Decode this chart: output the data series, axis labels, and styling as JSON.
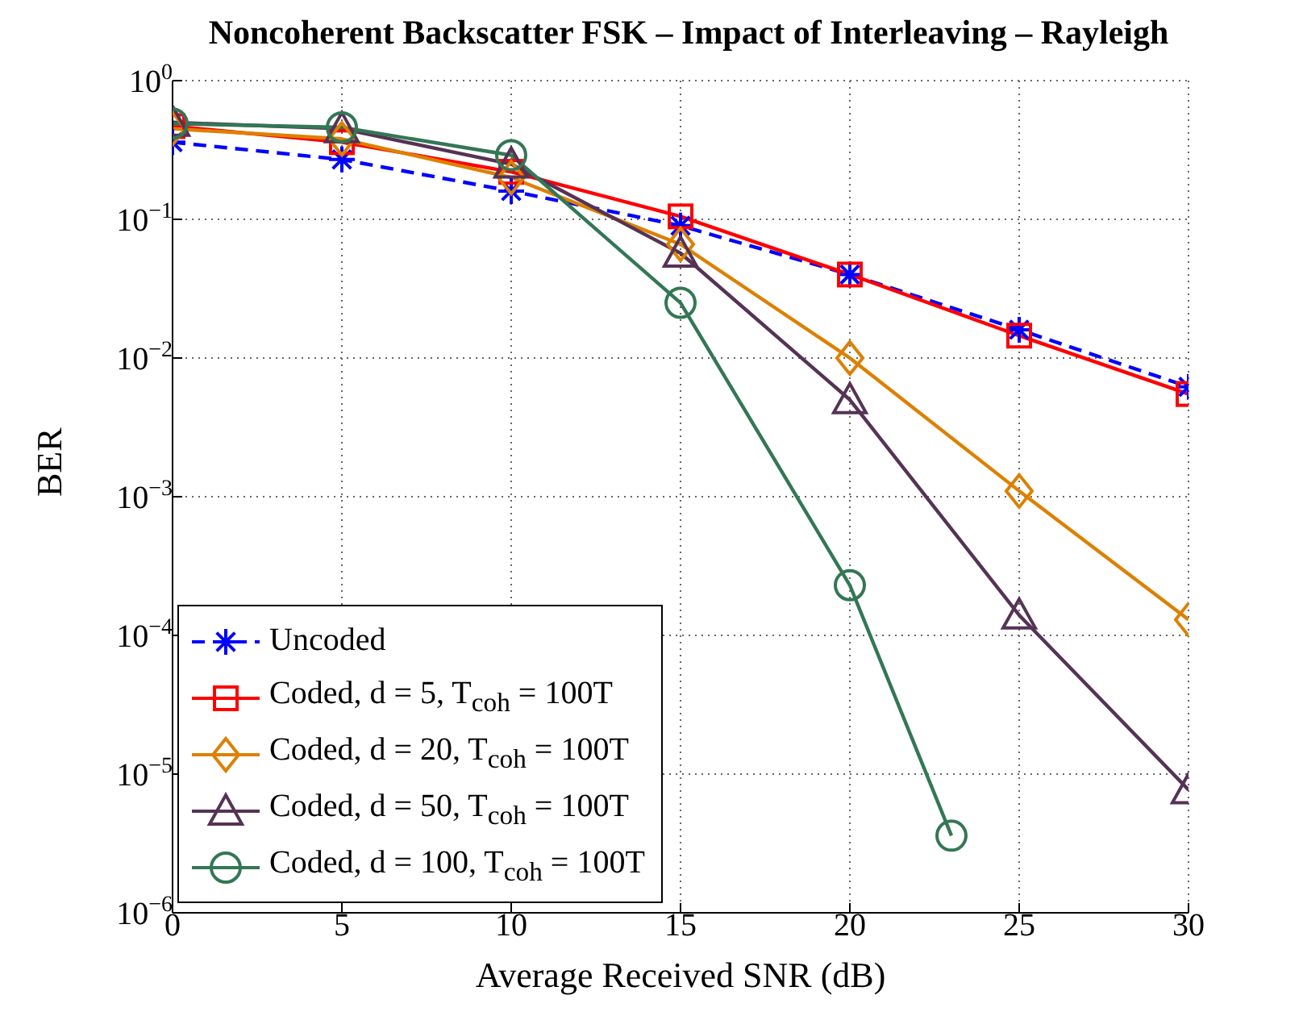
{
  "chart_data": {
    "type": "line",
    "title": "Noncoherent Backscatter FSK – Impact of Interleaving – Rayleigh",
    "xlabel": "Average Received SNR (dB)",
    "ylabel": "BER",
    "x": [
      0,
      5,
      10,
      15,
      20,
      25,
      30
    ],
    "series": [
      {
        "name": "Uncoded",
        "color": "#0000ff",
        "marker": "cross",
        "line_style": "dashed",
        "values": [
          0.36,
          0.27,
          0.16,
          0.09,
          0.04,
          0.016,
          0.0062
        ]
      },
      {
        "name": "Coded, d = 5, T$_{coh}$ = 100T",
        "color": "#ff0000",
        "marker": "square",
        "line_style": "solid",
        "values": [
          0.47,
          0.36,
          0.22,
          0.105,
          0.04,
          0.0145,
          0.0055
        ]
      },
      {
        "name": "Coded, d = 20, T$_{coh}$ = 100T",
        "color": "#dd8000",
        "marker": "diamond",
        "line_style": "solid",
        "values": [
          0.45,
          0.38,
          0.2,
          0.066,
          0.01,
          0.0011,
          0.00013
        ]
      },
      {
        "name": "Coded, d = 50, T$_{coh}$ = 100T",
        "color": "#553355",
        "marker": "triangle",
        "line_style": "solid",
        "values": [
          0.5,
          0.45,
          0.25,
          0.057,
          0.005,
          0.00014,
          7.7e-06
        ]
      },
      {
        "name": "Coded, d = 100, T$_{coh}$ = 100T",
        "color": "#337755",
        "marker": "circle",
        "line_style": "solid",
        "x": [
          0,
          5,
          10,
          15,
          20,
          23
        ],
        "values": [
          0.49,
          0.46,
          0.29,
          0.025,
          0.00023,
          3.6e-06
        ]
      }
    ],
    "xlim": [
      0,
      30
    ],
    "xticks": [
      0,
      5,
      10,
      15,
      20,
      25,
      30
    ],
    "ylim": [
      1e-06,
      1
    ],
    "yticks": [
      {
        "value": 1e-06,
        "label": "10$^{−6}$"
      },
      {
        "value": 1e-05,
        "label": "10$^{−5}$"
      },
      {
        "value": 0.0001,
        "label": "10$^{−4}$"
      },
      {
        "value": 0.001,
        "label": "10$^{−3}$"
      },
      {
        "value": 0.01,
        "label": "10$^{−2}$"
      },
      {
        "value": 0.1,
        "label": "10$^{−1}$"
      },
      {
        "value": 1,
        "label": "10$^{0}$"
      }
    ],
    "log": "y",
    "grid": true,
    "legend": "bottom left"
  }
}
